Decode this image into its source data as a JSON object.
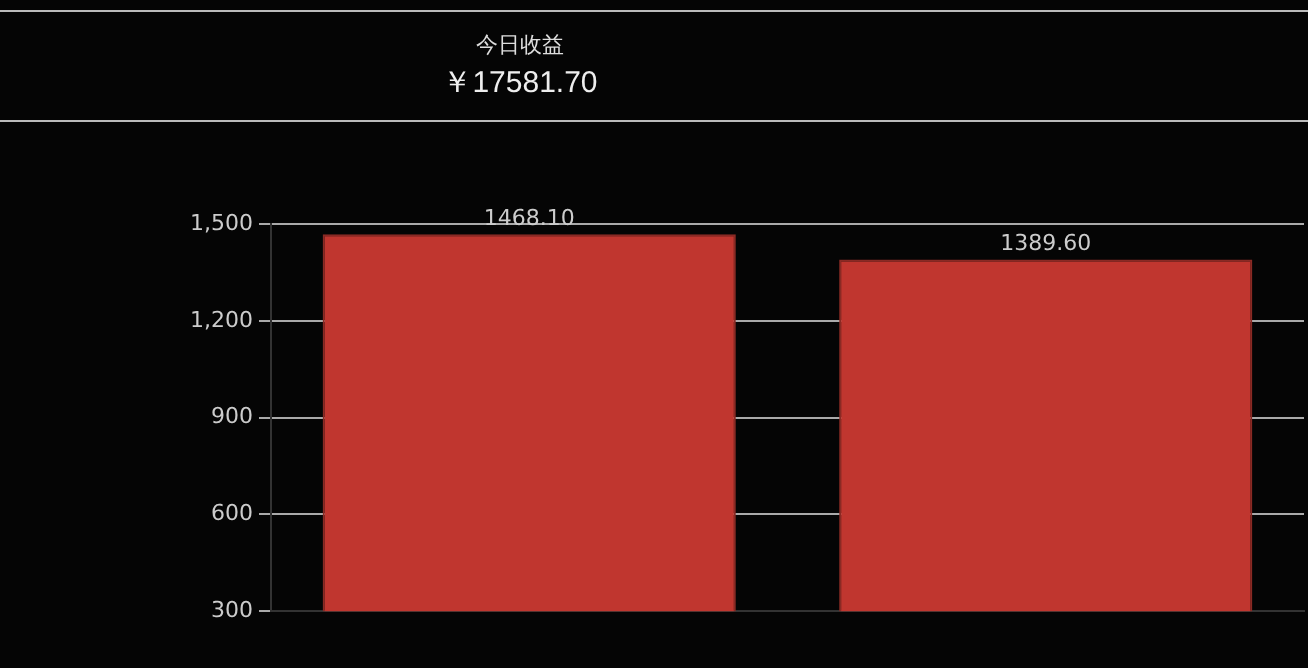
{
  "chart_data": {
    "type": "bar",
    "title": "今日收益",
    "subtitle": "￥17581.70",
    "categories": [
      null,
      null
    ],
    "values": [
      1468.1,
      1389.6
    ],
    "color": "#c0362f",
    "value_labels": [
      "1468.10",
      "1389.60"
    ],
    "ylim": [
      300,
      1500
    ],
    "yticks": [
      {
        "value": 300,
        "label": "300"
      },
      {
        "value": 600,
        "label": "600"
      },
      {
        "value": 900,
        "label": "900"
      },
      {
        "value": 1200,
        "label": "1,200"
      },
      {
        "value": 1500,
        "label": "1,500"
      }
    ],
    "grid": "y",
    "legend": false
  }
}
